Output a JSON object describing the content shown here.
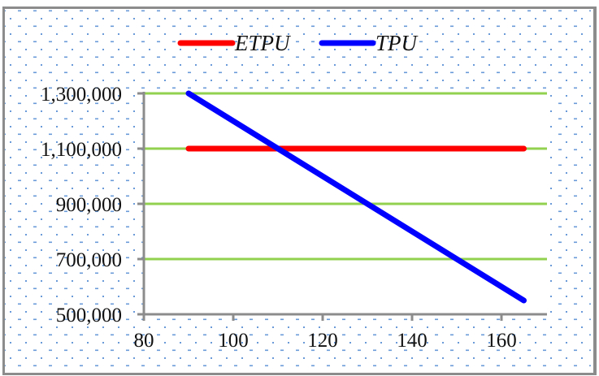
{
  "chart_data": {
    "type": "line",
    "title": "",
    "xlabel": "",
    "ylabel": "",
    "x": [
      90,
      165
    ],
    "series": [
      {
        "name": "ETPU",
        "color": "#ff0000",
        "x": [
          90,
          165
        ],
        "values": [
          1100000,
          1100000
        ]
      },
      {
        "name": "TPU",
        "color": "#0000ff",
        "x": [
          90,
          165
        ],
        "values": [
          1300000,
          550000
        ]
      }
    ],
    "xlim": [
      80,
      170
    ],
    "ylim": [
      500000,
      1300000
    ],
    "x_ticks": [
      80,
      100,
      120,
      140,
      160
    ],
    "y_ticks": [
      500000,
      700000,
      900000,
      1100000,
      1300000
    ],
    "x_tick_labels": [
      "80",
      "100",
      "120",
      "140",
      "160"
    ],
    "y_tick_labels": [
      "500,000",
      "700,000",
      "900,000",
      "1,100,000",
      "1,300,000"
    ],
    "grid": {
      "horizontal": true,
      "vertical": false,
      "color": "#92d050"
    },
    "legend": {
      "position": "top",
      "entries": [
        "ETPU",
        "TPU"
      ]
    },
    "annotations": []
  },
  "colors": {
    "frame_border": "#8c8c8c",
    "axis": "#8c8c8c",
    "gridline": "#92d050",
    "pattern_dot": "#5b8fd6",
    "etpu": "#ff0000",
    "tpu": "#0000ff"
  }
}
